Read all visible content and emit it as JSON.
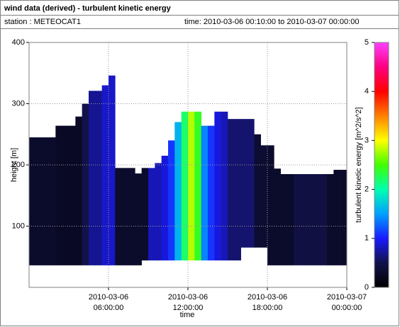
{
  "chart_data": {
    "type": "heatmap",
    "title": "wind data (derived) - turbulent kinetic energy",
    "subtitle": [
      "station : METEOCAT1",
      "time: 2010-03-06 00:10:00 to 2010-03-07 00:00:00"
    ],
    "xlabel": "time",
    "ylabel": "height [m]",
    "zlabel": "turbulent kinetic energy [m^2/s^2]",
    "x": [
      "2010-03-06 00:00:00",
      "2010-03-06 00:30:00",
      "2010-03-06 01:00:00",
      "2010-03-06 01:30:00",
      "2010-03-06 02:00:00",
      "2010-03-06 02:30:00",
      "2010-03-06 03:00:00",
      "2010-03-06 03:30:00",
      "2010-03-06 04:00:00",
      "2010-03-06 04:30:00",
      "2010-03-06 05:00:00",
      "2010-03-06 05:30:00",
      "2010-03-06 06:00:00",
      "2010-03-06 06:30:00",
      "2010-03-06 07:00:00",
      "2010-03-06 07:30:00",
      "2010-03-06 08:00:00",
      "2010-03-06 08:30:00",
      "2010-03-06 09:00:00",
      "2010-03-06 09:30:00",
      "2010-03-06 10:00:00",
      "2010-03-06 10:30:00",
      "2010-03-06 11:00:00",
      "2010-03-06 11:30:00",
      "2010-03-06 12:00:00",
      "2010-03-06 12:30:00",
      "2010-03-06 13:00:00",
      "2010-03-06 13:30:00",
      "2010-03-06 14:00:00",
      "2010-03-06 14:30:00",
      "2010-03-06 15:00:00",
      "2010-03-06 15:30:00",
      "2010-03-06 16:00:00",
      "2010-03-06 16:30:00",
      "2010-03-06 17:00:00",
      "2010-03-06 17:30:00",
      "2010-03-06 18:00:00",
      "2010-03-06 18:30:00",
      "2010-03-06 19:00:00",
      "2010-03-06 19:30:00",
      "2010-03-06 20:00:00",
      "2010-03-06 20:30:00",
      "2010-03-06 21:00:00",
      "2010-03-06 21:30:00",
      "2010-03-06 22:00:00",
      "2010-03-06 22:30:00",
      "2010-03-06 23:00:00",
      "2010-03-06 23:30:00"
    ],
    "top": [
      245,
      245,
      245,
      245,
      264,
      264,
      264,
      279,
      300,
      321,
      321,
      330,
      346,
      195,
      195,
      195,
      186,
      195,
      195,
      203,
      215,
      240,
      270,
      287,
      287,
      287,
      264,
      264,
      287,
      287,
      275,
      275,
      275,
      275,
      250,
      232,
      232,
      194,
      185,
      185,
      185,
      185,
      185,
      185,
      185,
      185,
      192,
      192
    ],
    "bottom": [
      36,
      36,
      36,
      36,
      36,
      36,
      36,
      36,
      36,
      36,
      36,
      36,
      36,
      36,
      36,
      36,
      36,
      44,
      44,
      44,
      44,
      44,
      44,
      44,
      44,
      44,
      44,
      44,
      44,
      44,
      44,
      44,
      65,
      65,
      65,
      65,
      36,
      36,
      36,
      36,
      36,
      36,
      36,
      36,
      36,
      36,
      36,
      36
    ],
    "values": [
      0.3,
      0.3,
      0.3,
      0.3,
      0.25,
      0.25,
      0.25,
      0.25,
      0.5,
      0.7,
      0.7,
      0.85,
      0.85,
      0.3,
      0.3,
      0.3,
      0.3,
      0.3,
      0.8,
      0.8,
      0.9,
      1.1,
      1.6,
      2.2,
      2.8,
      2.4,
      1.4,
      1.1,
      0.9,
      0.8,
      0.6,
      0.6,
      0.6,
      0.6,
      0.35,
      0.35,
      0.3,
      0.3,
      0.3,
      0.3,
      0.45,
      0.45,
      0.45,
      0.45,
      0.45,
      0.3,
      0.3,
      0.3
    ],
    "xlim": [
      "2010-03-06 00:00:00",
      "2010-03-07 00:00:00"
    ],
    "xticks": [
      "2010-03-06 06:00:00",
      "2010-03-06 12:00:00",
      "2010-03-06 18:00:00",
      "2010-03-07 00:00:00"
    ],
    "ylim": [
      0,
      400
    ],
    "yticks": [
      100,
      200,
      300,
      400
    ],
    "zlim": [
      0,
      5
    ],
    "zticks": [
      0,
      1,
      2,
      3,
      4,
      5
    ],
    "colormap": [
      "#000000",
      "#12124a",
      "#1a1aff",
      "#00a0ff",
      "#00ffb0",
      "#40ff00",
      "#ffff00",
      "#ff8000",
      "#ff0000",
      "#ff0080",
      "#ff40ff"
    ],
    "grid": true
  }
}
